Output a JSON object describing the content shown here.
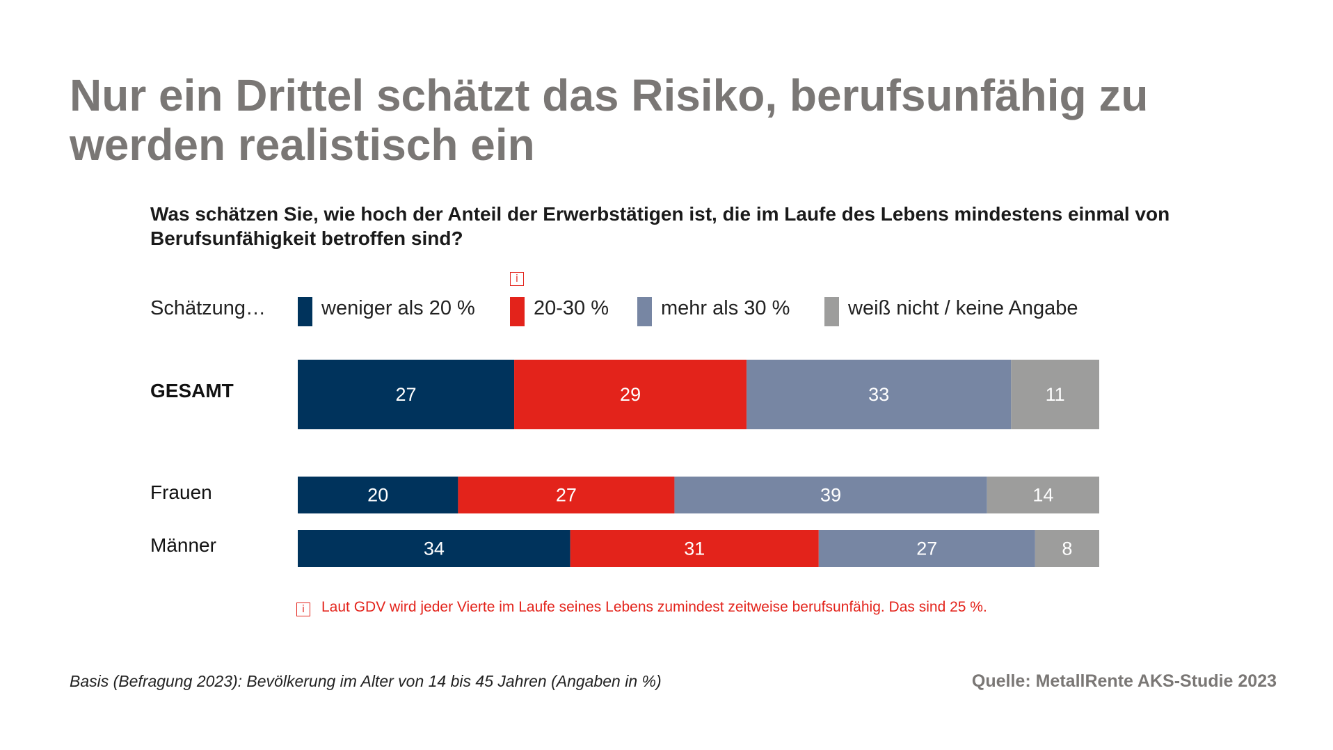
{
  "title": "Nur ein Drittel schätzt das Risiko, berufsunfähig zu werden realistisch ein",
  "question": "Was schätzen Sie, wie hoch der Anteil der Erwerbstätigen ist, die im Laufe des Lebens mindestens einmal von Berufsunfähigkeit betroffen sind?",
  "legend_prefix": "Schätzung…",
  "info_symbol": "i",
  "note": "Laut GDV wird jeder Vierte im Laufe seines Lebens zumindest zeitweise berufsunfähig. Das sind 25 %.",
  "basis": "Basis (Befragung 2023): Bevölkerung im Alter von 14 bis 45 Jahren (Angaben in %)",
  "source": "Quelle: MetallRente AKS-Studie 2023",
  "chart_data": {
    "type": "bar",
    "orientation": "horizontal-stacked-100",
    "categories": [
      "GESAMT",
      "Frauen",
      "Männer"
    ],
    "series": [
      {
        "name": "weniger als 20 %",
        "color": "#00335c",
        "values": [
          27,
          20,
          34
        ]
      },
      {
        "name": "20-30 %",
        "color": "#e3231b",
        "values": [
          29,
          27,
          31
        ]
      },
      {
        "name": "mehr als 30 %",
        "color": "#7786a3",
        "values": [
          33,
          39,
          27
        ]
      },
      {
        "name": "weiß nicht / keine Angabe",
        "color": "#9d9d9c",
        "values": [
          11,
          14,
          8
        ]
      }
    ],
    "xlim": [
      0,
      100
    ],
    "legend": "top",
    "grid": false
  }
}
